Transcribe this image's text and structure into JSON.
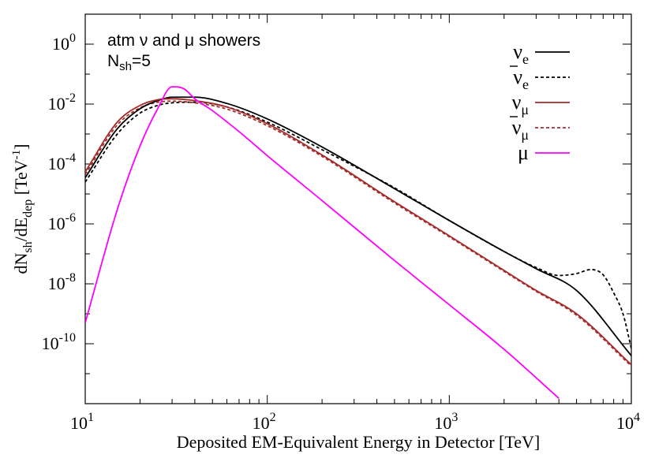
{
  "chart_data": {
    "type": "line",
    "title": "",
    "annotation_line1": "atm ν and μ showers",
    "annotation_line2_main": "N",
    "annotation_line2_sub": "sh",
    "annotation_line2_tail": "=5",
    "xlabel": "Deposited EM-Equivalent Energy in Detector [TeV]",
    "ylabel": "dN_sh/dE_dep [TeV^-1]",
    "ylabel_parts": {
      "a": "dN",
      "a_sub": "sh",
      "b": "/dE",
      "b_sub": "dep",
      "c": " [TeV",
      "c_sup": "-1",
      "d": "]"
    },
    "x_scale": "log",
    "y_scale": "log",
    "xlim": [
      10,
      10000
    ],
    "ylim": [
      1e-12,
      10
    ],
    "x_ticks": [
      {
        "base": "10",
        "exp": "1",
        "value": 10
      },
      {
        "base": "10",
        "exp": "2",
        "value": 100
      },
      {
        "base": "10",
        "exp": "3",
        "value": 1000
      },
      {
        "base": "10",
        "exp": "4",
        "value": 10000
      }
    ],
    "y_ticks": [
      {
        "base": "10",
        "exp": "0",
        "value": 1
      },
      {
        "base": "10",
        "exp": "-2",
        "value": 0.01
      },
      {
        "base": "10",
        "exp": "-4",
        "value": 0.0001
      },
      {
        "base": "10",
        "exp": "-6",
        "value": 1e-06
      },
      {
        "base": "10",
        "exp": "-8",
        "value": 1e-08
      },
      {
        "base": "10",
        "exp": "-10",
        "value": 1e-10
      }
    ],
    "legend_position": "top-right",
    "series": [
      {
        "name": "ν_e",
        "label_main": "ν",
        "label_sub": "e",
        "label_bar": false,
        "color": "#000000",
        "dash": "solid",
        "x": [
          10,
          15,
          20,
          25,
          30,
          40,
          60,
          100,
          200,
          500,
          1000,
          2000,
          3000,
          5000,
          10000
        ],
        "y": [
          3.5e-05,
          0.0015,
          0.007,
          0.013,
          0.017,
          0.017,
          0.0105,
          0.0032,
          0.00037,
          1.5e-05,
          1.3e-06,
          1.2e-07,
          3.2e-08,
          6e-09,
          4e-11
        ]
      },
      {
        "name": "ν̄_e",
        "label_main": "ν",
        "label_sub": "e",
        "label_bar": true,
        "color": "#000000",
        "dash": "dashed",
        "x": [
          10,
          15,
          20,
          25,
          30,
          40,
          60,
          100,
          200,
          500,
          1000,
          2000,
          3000,
          4000,
          5000,
          6000,
          7000,
          8000,
          9000,
          10000
        ],
        "y": [
          2.5e-05,
          0.001,
          0.005,
          0.009,
          0.011,
          0.0115,
          0.008,
          0.0025,
          0.0003,
          1.6e-05,
          1.3e-06,
          1.2e-07,
          3.5e-08,
          1.9e-08,
          2.2e-08,
          3e-08,
          2e-08,
          5e-09,
          1e-09,
          7e-11
        ]
      },
      {
        "name": "ν_μ",
        "label_main": "ν",
        "label_sub": "μ",
        "label_bar": false,
        "color": "#a52a2a",
        "dash": "solid",
        "x": [
          10,
          15,
          20,
          25,
          30,
          40,
          60,
          100,
          200,
          500,
          1000,
          2000,
          3000,
          5000,
          10000
        ],
        "y": [
          5.5e-05,
          0.0025,
          0.009,
          0.014,
          0.015,
          0.013,
          0.008,
          0.0022,
          0.0002,
          5.5e-06,
          4e-07,
          2.8e-08,
          6e-09,
          1e-09,
          2e-11
        ]
      },
      {
        "name": "ν̄_μ",
        "label_main": "ν",
        "label_sub": "μ",
        "label_bar": true,
        "color": "#a52a2a",
        "dash": "dashed",
        "x": [
          10,
          15,
          20,
          25,
          30,
          40,
          60,
          100,
          200,
          500,
          1000,
          2000,
          3000,
          5000,
          10000
        ],
        "y": [
          4.5e-05,
          0.002,
          0.0075,
          0.0115,
          0.0125,
          0.011,
          0.0068,
          0.0019,
          0.00018,
          5e-06,
          3.7e-07,
          2.6e-08,
          5.6e-09,
          9e-10,
          1.8e-11
        ]
      },
      {
        "name": "μ",
        "label_main": "μ",
        "label_sub": "",
        "label_bar": false,
        "color": "#ff00ff",
        "dash": "solid",
        "x": [
          10,
          15,
          20,
          25,
          30,
          35,
          40,
          50,
          70,
          100,
          200,
          500,
          1000,
          2000,
          4000
        ],
        "y": [
          5e-10,
          3e-06,
          0.0004,
          0.007,
          0.038,
          0.032,
          0.015,
          0.006,
          0.0012,
          0.00019,
          6e-06,
          6e-08,
          2e-09,
          6.5e-11,
          1.5e-12
        ]
      }
    ]
  }
}
